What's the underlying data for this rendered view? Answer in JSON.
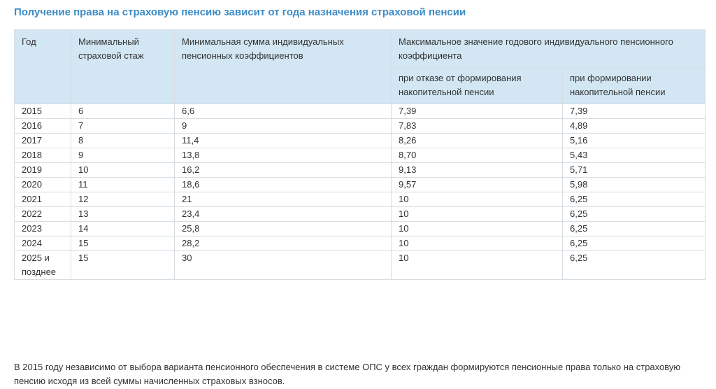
{
  "title": "Получение права на страховую пенсию зависит от года назначения страховой пенсии",
  "table": {
    "headers": {
      "year": "Год",
      "min_stage": "Минимальный страховой стаж",
      "min_sum": "Минимальная сумма индивидуальных пенсионных коэффициентов",
      "max_value": "Максимальное значение годового индивидуального пенсионного коэффициента",
      "max_refuse": "при отказе от формирования накопительной пенсии",
      "max_form": "при формировании накопительной пенсии"
    },
    "rows": [
      {
        "year": "2015",
        "stage": "6",
        "sum": "6,6",
        "refuse": "7,39",
        "form": "7,39"
      },
      {
        "year": "2016",
        "stage": "7",
        "sum": "9",
        "refuse": "7,83",
        "form": "4,89"
      },
      {
        "year": "2017",
        "stage": "8",
        "sum": "11,4",
        "refuse": "8,26",
        "form": "5,16"
      },
      {
        "year": "2018",
        "stage": "9",
        "sum": "13,8",
        "refuse": "8,70",
        "form": "5,43"
      },
      {
        "year": "2019",
        "stage": "10",
        "sum": "16,2",
        "refuse": "9,13",
        "form": "5,71"
      },
      {
        "year": "2020",
        "stage": "11",
        "sum": "18,6",
        "refuse": "9,57",
        "form": "5,98"
      },
      {
        "year": "2021",
        "stage": "12",
        "sum": "21",
        "refuse": "10",
        "form": "6,25"
      },
      {
        "year": "2022",
        "stage": "13",
        "sum": "23,4",
        "refuse": "10",
        "form": "6,25"
      },
      {
        "year": "2023",
        "stage": "14",
        "sum": "25,8",
        "refuse": "10",
        "form": "6,25"
      },
      {
        "year": "2024",
        "stage": "15",
        "sum": "28,2",
        "refuse": "10",
        "form": "6,25"
      },
      {
        "year": "2025 и позднее",
        "stage": "15",
        "sum": "30",
        "refuse": "10",
        "form": "6,25"
      }
    ]
  },
  "footnote": "В 2015 году независимо от выбора варианта пенсионного обеспечения в системе ОПС у всех граждан формируются пенсионные права только на страховую пенсию исходя из всей суммы начисленных страховых взносов.",
  "colors": {
    "title": "#3d8cc4",
    "header_bg": "#d2e6f3",
    "border": "#d6dde3",
    "text": "#333333"
  }
}
